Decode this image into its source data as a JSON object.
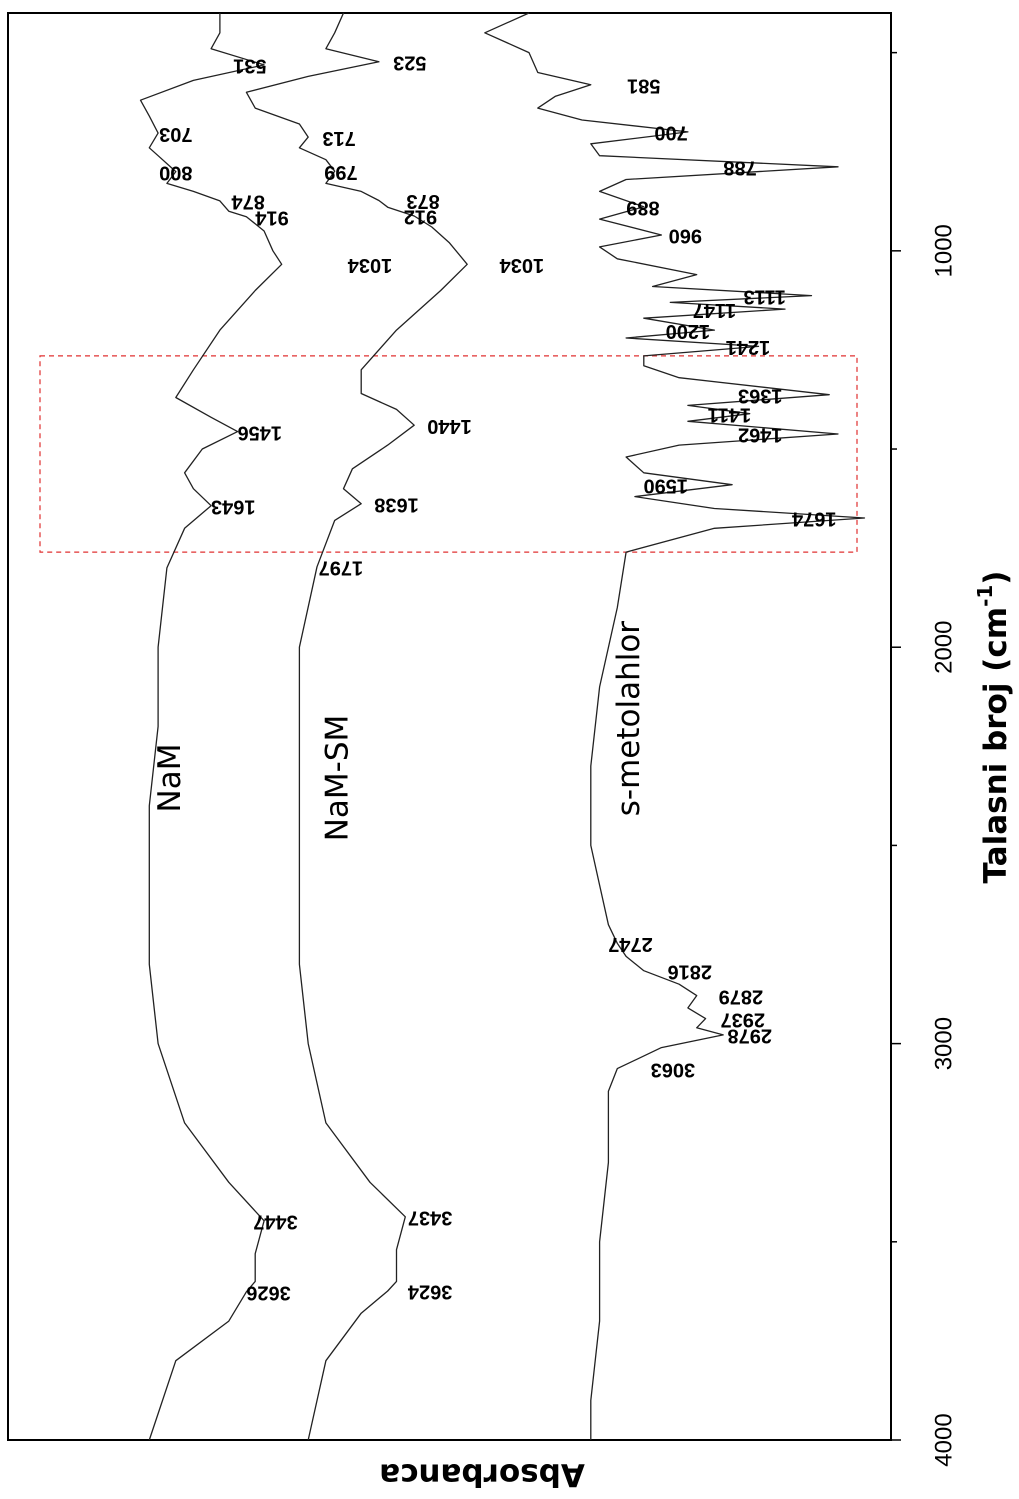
{
  "chart_data": {
    "type": "line",
    "orientation": "rotated 90 degrees clockwise (wavenumber axis on the right, absorbance axis at the bottom)",
    "xlabel": "Talasni broj (cm",
    "xlabel_sup": "-1",
    "xlabel_close": ")",
    "ylabel": "Absorbanca",
    "xlim": [
      400,
      4000
    ],
    "x_ticks": [
      1000,
      2000,
      3000,
      4000
    ],
    "x_tick_labels": [
      "1000",
      "2000",
      "3000",
      "4000"
    ],
    "grid": false,
    "legend": "none (series labels drawn next to curves)",
    "highlight_region": {
      "x_range": [
        1265,
        1760
      ],
      "style": "red dashed box"
    },
    "series": [
      {
        "name": "s-metolahlor",
        "peaks": [
          "3063",
          "2978",
          "2937",
          "2879",
          "2816",
          "2747",
          "1674",
          "1590",
          "1462",
          "1411",
          "1363",
          "1241",
          "1200",
          "1147",
          "1113",
          "960",
          "889",
          "788",
          "700",
          "581"
        ],
        "points": [
          [
            400,
            0.41
          ],
          [
            450,
            0.46
          ],
          [
            500,
            0.41
          ],
          [
            550,
            0.4
          ],
          [
            581,
            0.34
          ],
          [
            610,
            0.38
          ],
          [
            640,
            0.4
          ],
          [
            670,
            0.35
          ],
          [
            700,
            0.23
          ],
          [
            730,
            0.34
          ],
          [
            760,
            0.33
          ],
          [
            788,
            0.06
          ],
          [
            820,
            0.3
          ],
          [
            850,
            0.33
          ],
          [
            889,
            0.28
          ],
          [
            920,
            0.33
          ],
          [
            960,
            0.26
          ],
          [
            990,
            0.33
          ],
          [
            1020,
            0.31
          ],
          [
            1060,
            0.22
          ],
          [
            1090,
            0.27
          ],
          [
            1113,
            0.09
          ],
          [
            1130,
            0.25
          ],
          [
            1147,
            0.12
          ],
          [
            1170,
            0.28
          ],
          [
            1200,
            0.2
          ],
          [
            1220,
            0.3
          ],
          [
            1241,
            0.15
          ],
          [
            1265,
            0.28
          ],
          [
            1290,
            0.28
          ],
          [
            1320,
            0.24
          ],
          [
            1363,
            0.07
          ],
          [
            1390,
            0.23
          ],
          [
            1411,
            0.16
          ],
          [
            1430,
            0.23
          ],
          [
            1462,
            0.06
          ],
          [
            1490,
            0.24
          ],
          [
            1520,
            0.3
          ],
          [
            1560,
            0.28
          ],
          [
            1590,
            0.18
          ],
          [
            1620,
            0.29
          ],
          [
            1650,
            0.2
          ],
          [
            1674,
            0.03
          ],
          [
            1700,
            0.2
          ],
          [
            1760,
            0.3
          ],
          [
            1900,
            0.31
          ],
          [
            2100,
            0.33
          ],
          [
            2300,
            0.34
          ],
          [
            2500,
            0.34
          ],
          [
            2600,
            0.33
          ],
          [
            2700,
            0.32
          ],
          [
            2747,
            0.31
          ],
          [
            2780,
            0.3
          ],
          [
            2816,
            0.28
          ],
          [
            2850,
            0.24
          ],
          [
            2879,
            0.22
          ],
          [
            2910,
            0.23
          ],
          [
            2937,
            0.21
          ],
          [
            2960,
            0.22
          ],
          [
            2978,
            0.19
          ],
          [
            3010,
            0.26
          ],
          [
            3063,
            0.31
          ],
          [
            3120,
            0.32
          ],
          [
            3300,
            0.32
          ],
          [
            3500,
            0.33
          ],
          [
            3700,
            0.33
          ],
          [
            3900,
            0.34
          ],
          [
            4000,
            0.34
          ]
        ]
      },
      {
        "name": "NaM-SM",
        "peaks": [
          "3624",
          "3437",
          "1797",
          "1638",
          "1440",
          "1034",
          "912",
          "873",
          "799",
          "713",
          "523"
        ],
        "points": [
          [
            400,
            0.62
          ],
          [
            450,
            0.63
          ],
          [
            490,
            0.64
          ],
          [
            523,
            0.58
          ],
          [
            560,
            0.66
          ],
          [
            600,
            0.73
          ],
          [
            640,
            0.72
          ],
          [
            680,
            0.67
          ],
          [
            713,
            0.66
          ],
          [
            740,
            0.67
          ],
          [
            770,
            0.64
          ],
          [
            799,
            0.63
          ],
          [
            830,
            0.64
          ],
          [
            850,
            0.6
          ],
          [
            873,
            0.58
          ],
          [
            890,
            0.57
          ],
          [
            912,
            0.54
          ],
          [
            940,
            0.52
          ],
          [
            980,
            0.5
          ],
          [
            1034,
            0.48
          ],
          [
            1100,
            0.51
          ],
          [
            1200,
            0.56
          ],
          [
            1300,
            0.6
          ],
          [
            1360,
            0.6
          ],
          [
            1400,
            0.56
          ],
          [
            1440,
            0.54
          ],
          [
            1490,
            0.57
          ],
          [
            1550,
            0.61
          ],
          [
            1600,
            0.62
          ],
          [
            1638,
            0.6
          ],
          [
            1680,
            0.63
          ],
          [
            1797,
            0.65
          ],
          [
            2000,
            0.67
          ],
          [
            2200,
            0.67
          ],
          [
            2400,
            0.67
          ],
          [
            2500,
            0.67
          ],
          [
            2600,
            0.67
          ],
          [
            2800,
            0.67
          ],
          [
            3000,
            0.66
          ],
          [
            3200,
            0.64
          ],
          [
            3350,
            0.59
          ],
          [
            3437,
            0.55
          ],
          [
            3520,
            0.56
          ],
          [
            3600,
            0.56
          ],
          [
            3624,
            0.57
          ],
          [
            3680,
            0.6
          ],
          [
            3800,
            0.64
          ],
          [
            4000,
            0.66
          ]
        ]
      },
      {
        "name": "NaM",
        "peaks": [
          "3626",
          "3447",
          "1643",
          "1456",
          "1034",
          "914",
          "874",
          "800",
          "703",
          "531"
        ],
        "points": [
          [
            400,
            0.76
          ],
          [
            450,
            0.76
          ],
          [
            490,
            0.77
          ],
          [
            531,
            0.71
          ],
          [
            570,
            0.79
          ],
          [
            620,
            0.85
          ],
          [
            660,
            0.84
          ],
          [
            703,
            0.83
          ],
          [
            740,
            0.84
          ],
          [
            760,
            0.83
          ],
          [
            800,
            0.81
          ],
          [
            830,
            0.82
          ],
          [
            850,
            0.79
          ],
          [
            874,
            0.76
          ],
          [
            900,
            0.75
          ],
          [
            914,
            0.73
          ],
          [
            950,
            0.71
          ],
          [
            1000,
            0.7
          ],
          [
            1034,
            0.69
          ],
          [
            1100,
            0.72
          ],
          [
            1200,
            0.76
          ],
          [
            1300,
            0.79
          ],
          [
            1370,
            0.81
          ],
          [
            1420,
            0.77
          ],
          [
            1456,
            0.74
          ],
          [
            1500,
            0.78
          ],
          [
            1560,
            0.8
          ],
          [
            1600,
            0.79
          ],
          [
            1643,
            0.77
          ],
          [
            1700,
            0.8
          ],
          [
            1800,
            0.82
          ],
          [
            2000,
            0.83
          ],
          [
            2200,
            0.83
          ],
          [
            2400,
            0.84
          ],
          [
            2600,
            0.84
          ],
          [
            2800,
            0.84
          ],
          [
            3000,
            0.83
          ],
          [
            3200,
            0.8
          ],
          [
            3350,
            0.75
          ],
          [
            3447,
            0.71
          ],
          [
            3530,
            0.72
          ],
          [
            3600,
            0.72
          ],
          [
            3626,
            0.73
          ],
          [
            3700,
            0.75
          ],
          [
            3800,
            0.81
          ],
          [
            4000,
            0.84
          ]
        ]
      }
    ],
    "peak_label_positions": {
      "s-metolahlor": [
        [
          3063,
          0.247
        ],
        [
          2978,
          0.16
        ],
        [
          2937,
          0.168
        ],
        [
          2879,
          0.17
        ],
        [
          2816,
          0.228
        ],
        [
          2747,
          0.295
        ],
        [
          1674,
          0.087
        ],
        [
          1590,
          0.255
        ],
        [
          1462,
          0.148
        ],
        [
          1411,
          0.183
        ],
        [
          1363,
          0.148
        ],
        [
          1241,
          0.162
        ],
        [
          1200,
          0.23
        ],
        [
          1147,
          0.2
        ],
        [
          1113,
          0.143
        ],
        [
          960,
          0.233
        ],
        [
          889,
          0.281
        ],
        [
          788,
          0.171
        ],
        [
          700,
          0.249
        ],
        [
          581,
          0.28
        ]
      ],
      "NaM-SM": [
        [
          3624,
          0.522
        ],
        [
          3437,
          0.522
        ],
        [
          1797,
          0.623
        ],
        [
          1638,
          0.56
        ],
        [
          1440,
          0.5
        ],
        [
          1034,
          0.418
        ],
        [
          912,
          0.533
        ],
        [
          873,
          0.53
        ],
        [
          799,
          0.623
        ],
        [
          713,
          0.625
        ],
        [
          523,
          0.545
        ]
      ],
      "NaM": [
        [
          3626,
          0.705
        ],
        [
          3447,
          0.697
        ],
        [
          1643,
          0.745
        ],
        [
          1456,
          0.715
        ],
        [
          1034,
          0.59
        ],
        [
          914,
          0.701
        ],
        [
          874,
          0.728
        ],
        [
          800,
          0.81
        ],
        [
          703,
          0.81
        ],
        [
          531,
          0.726
        ]
      ]
    },
    "series_label_positions": {
      "s-metolahlor": [
        2180,
        0.295
      ],
      "NaM-SM": [
        2330,
        0.625
      ],
      "NaM": [
        2330,
        0.815
      ]
    }
  }
}
